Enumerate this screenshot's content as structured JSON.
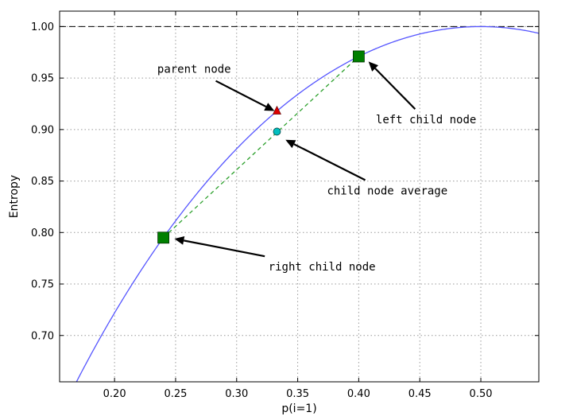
{
  "chart_data": {
    "type": "line",
    "xlabel": "p(i=1)",
    "ylabel": "Entropy",
    "xlim": [
      0.155,
      0.5475
    ],
    "ylim": [
      0.655,
      1.015
    ],
    "xticks": [
      0.2,
      0.25,
      0.3,
      0.35,
      0.4,
      0.45,
      0.5
    ],
    "xtick_labels": [
      "0.20",
      "0.25",
      "0.30",
      "0.35",
      "0.40",
      "0.45",
      "0.50"
    ],
    "yticks": [
      0.7,
      0.75,
      0.8,
      0.85,
      0.9,
      0.95,
      1.0
    ],
    "ytick_labels": [
      "0.70",
      "0.75",
      "0.80",
      "0.85",
      "0.90",
      "0.95",
      "1.00"
    ],
    "grid": true,
    "curve": {
      "function": "binary-entropy",
      "color": "#5555ff"
    },
    "reference_line": {
      "y": 1.0,
      "style": "dashed",
      "color": "#000000"
    },
    "chord": {
      "x": [
        0.24,
        0.4
      ],
      "y": [
        0.795,
        0.971
      ],
      "style": "dashed",
      "color": "#2ca02c"
    },
    "points": [
      {
        "x": 0.24,
        "y": 0.795,
        "marker": "square",
        "color": "#008000"
      },
      {
        "x": 0.4,
        "y": 0.971,
        "marker": "square",
        "color": "#008000"
      },
      {
        "x": 0.333,
        "y": 0.918,
        "marker": "triangle",
        "color": "#dd0000"
      },
      {
        "x": 0.333,
        "y": 0.898,
        "marker": "circle",
        "color": "#00bfbf"
      }
    ],
    "annotations": [
      {
        "text": "parent node",
        "x": 0.235,
        "y": 0.955,
        "arrow_to": {
          "x": 0.331,
          "y": 0.918
        }
      },
      {
        "text": "left child node",
        "x": 0.414,
        "y": 0.906,
        "arrow_to": {
          "x": 0.408,
          "y": 0.966
        }
      },
      {
        "text": "child node average",
        "x": 0.374,
        "y": 0.837,
        "arrow_to": {
          "x": 0.34,
          "y": 0.89
        }
      },
      {
        "text": "right child node",
        "x": 0.326,
        "y": 0.763,
        "arrow_to": {
          "x": 0.249,
          "y": 0.794
        }
      }
    ]
  }
}
